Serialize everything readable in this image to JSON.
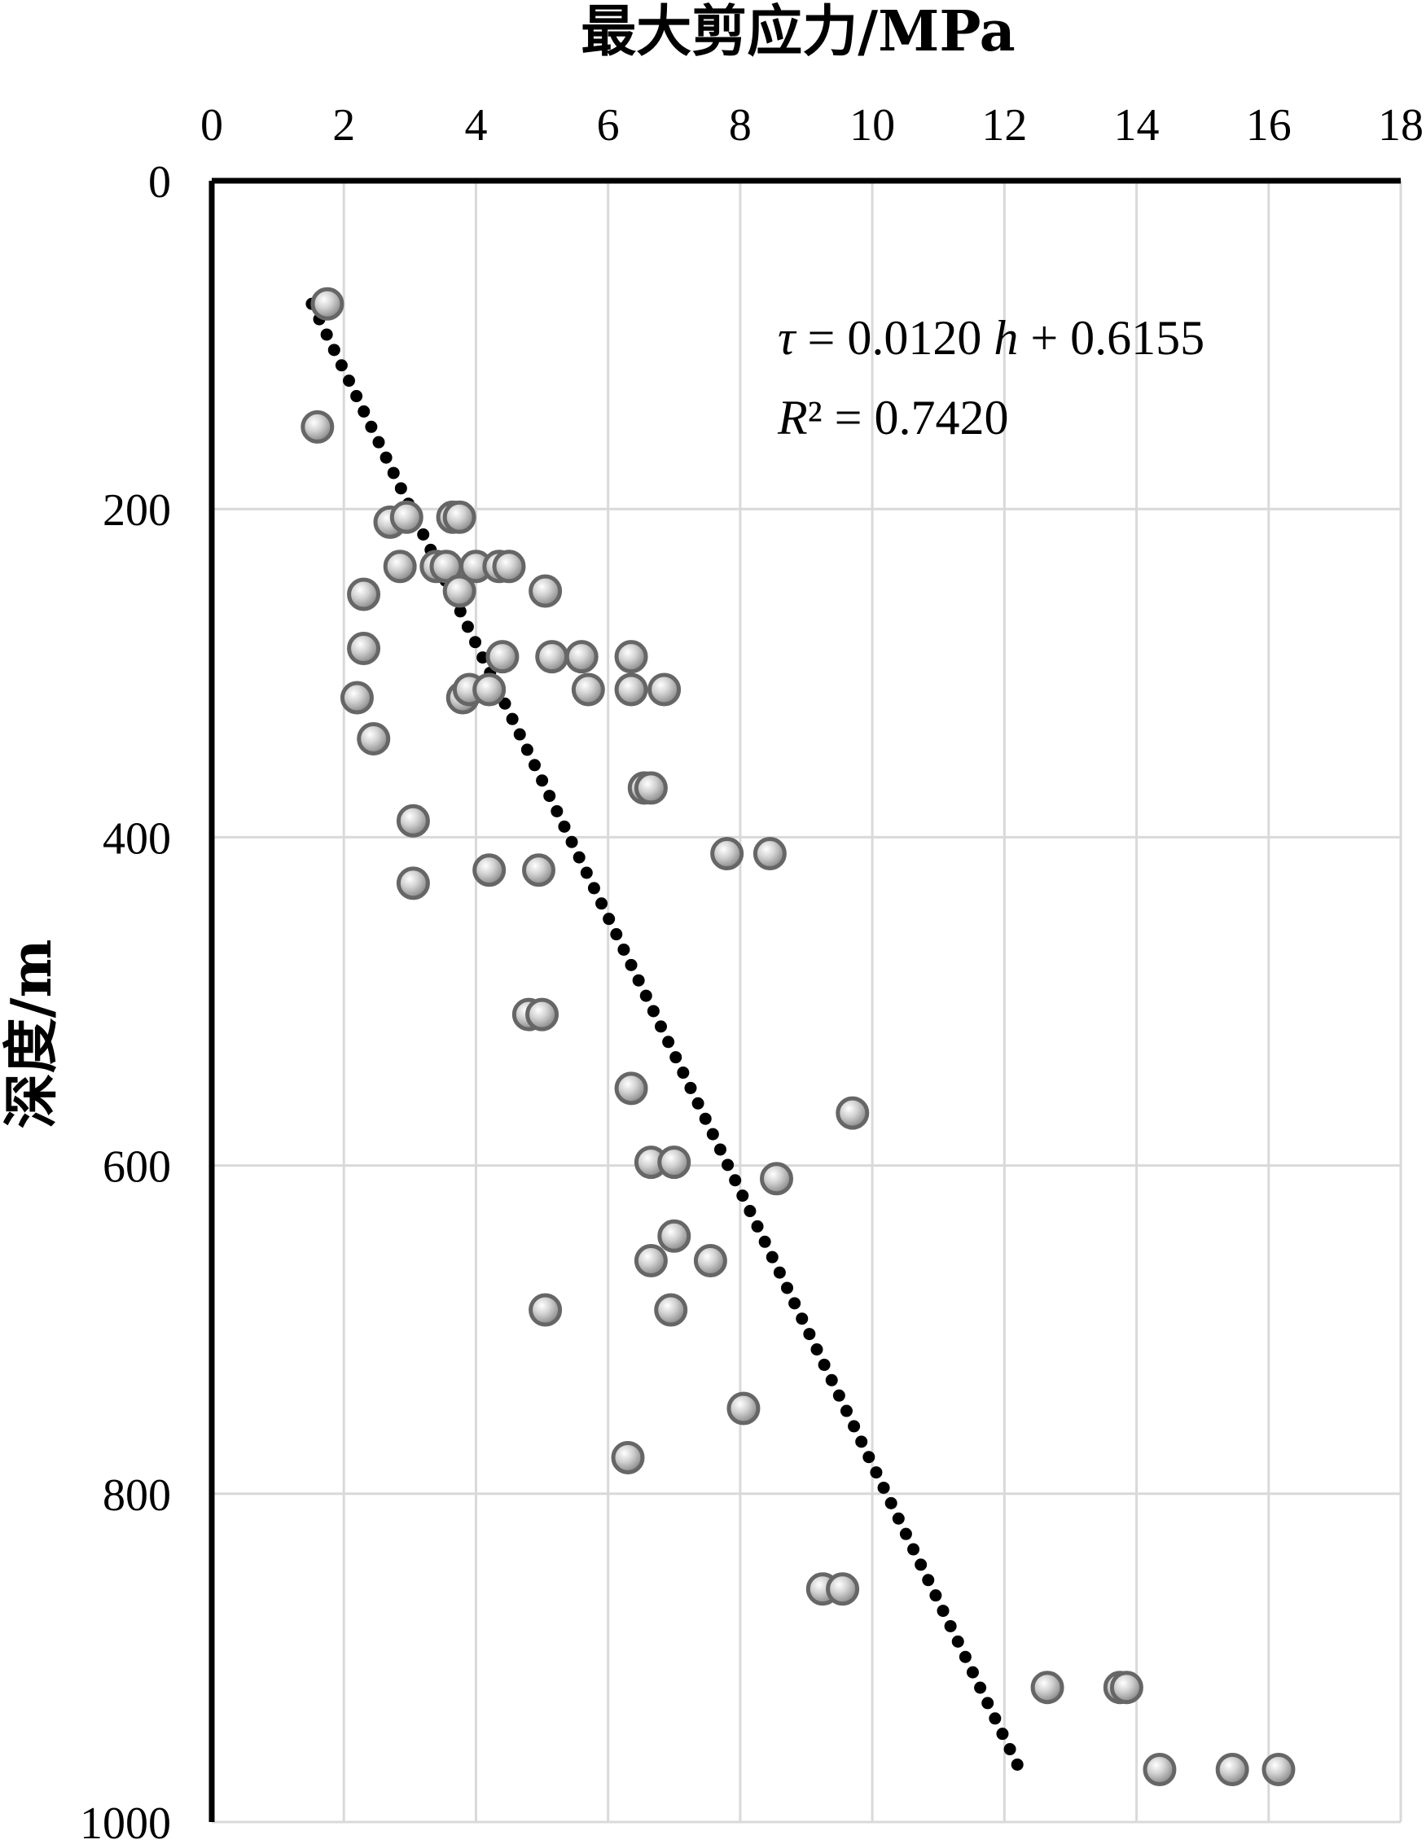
{
  "chart_data": {
    "type": "scatter",
    "xlabel": "最大剪应力/MPa",
    "ylabel": "深度/m",
    "xlim": [
      0,
      18
    ],
    "ylim": [
      0,
      1000
    ],
    "x_axis_position": "top",
    "y_axis_inverted": true,
    "grid": true,
    "x_ticks": [
      "0",
      "2",
      "4",
      "6",
      "8",
      "10",
      "12",
      "14",
      "16",
      "18"
    ],
    "y_ticks": [
      "0",
      "200",
      "400",
      "600",
      "800",
      "1000"
    ],
    "colors": {
      "marker_fill": "#cfcfcf",
      "marker_stroke": "#666666",
      "trendline": "#000000",
      "grid": "#d9d9d9"
    },
    "annotation": {
      "line1": {
        "tau": "τ",
        "part1": " = 0.0120 ",
        "h": "h",
        "part2": " + 0.6155"
      },
      "line2": {
        "r": "R",
        "part": "² = 0.7420"
      }
    },
    "trendline": {
      "style": "dotted",
      "slope": 0.012,
      "intercept": 0.6155,
      "depth_range": [
        75,
        965
      ]
    },
    "points": [
      {
        "x": 1.75,
        "y": 75
      },
      {
        "x": 1.6,
        "y": 150
      },
      {
        "x": 2.7,
        "y": 208
      },
      {
        "x": 2.95,
        "y": 205
      },
      {
        "x": 3.65,
        "y": 205
      },
      {
        "x": 3.75,
        "y": 205
      },
      {
        "x": 2.85,
        "y": 235
      },
      {
        "x": 3.4,
        "y": 235
      },
      {
        "x": 3.55,
        "y": 235
      },
      {
        "x": 4.0,
        "y": 235
      },
      {
        "x": 4.35,
        "y": 235
      },
      {
        "x": 4.5,
        "y": 235
      },
      {
        "x": 2.3,
        "y": 252
      },
      {
        "x": 3.75,
        "y": 250
      },
      {
        "x": 5.05,
        "y": 250
      },
      {
        "x": 2.3,
        "y": 285
      },
      {
        "x": 4.4,
        "y": 290
      },
      {
        "x": 5.15,
        "y": 290
      },
      {
        "x": 5.6,
        "y": 290
      },
      {
        "x": 6.35,
        "y": 290
      },
      {
        "x": 2.2,
        "y": 315
      },
      {
        "x": 3.8,
        "y": 315
      },
      {
        "x": 3.9,
        "y": 310
      },
      {
        "x": 4.2,
        "y": 310
      },
      {
        "x": 5.7,
        "y": 310
      },
      {
        "x": 6.35,
        "y": 310
      },
      {
        "x": 6.85,
        "y": 310
      },
      {
        "x": 2.45,
        "y": 340
      },
      {
        "x": 6.55,
        "y": 370
      },
      {
        "x": 6.65,
        "y": 370
      },
      {
        "x": 3.05,
        "y": 390
      },
      {
        "x": 7.8,
        "y": 410
      },
      {
        "x": 8.45,
        "y": 410
      },
      {
        "x": 4.2,
        "y": 420
      },
      {
        "x": 4.95,
        "y": 420
      },
      {
        "x": 3.05,
        "y": 428
      },
      {
        "x": 4.8,
        "y": 508
      },
      {
        "x": 5.0,
        "y": 508
      },
      {
        "x": 6.35,
        "y": 553
      },
      {
        "x": 9.7,
        "y": 568
      },
      {
        "x": 6.65,
        "y": 598
      },
      {
        "x": 7.0,
        "y": 598
      },
      {
        "x": 8.55,
        "y": 608
      },
      {
        "x": 7.0,
        "y": 643
      },
      {
        "x": 6.65,
        "y": 658
      },
      {
        "x": 7.55,
        "y": 658
      },
      {
        "x": 5.05,
        "y": 688
      },
      {
        "x": 6.95,
        "y": 688
      },
      {
        "x": 8.05,
        "y": 748
      },
      {
        "x": 6.3,
        "y": 778
      },
      {
        "x": 9.25,
        "y": 858
      },
      {
        "x": 9.55,
        "y": 858
      },
      {
        "x": 12.65,
        "y": 918
      },
      {
        "x": 13.75,
        "y": 918
      },
      {
        "x": 13.85,
        "y": 918
      },
      {
        "x": 14.35,
        "y": 968
      },
      {
        "x": 15.45,
        "y": 968
      },
      {
        "x": 16.15,
        "y": 968
      }
    ]
  }
}
